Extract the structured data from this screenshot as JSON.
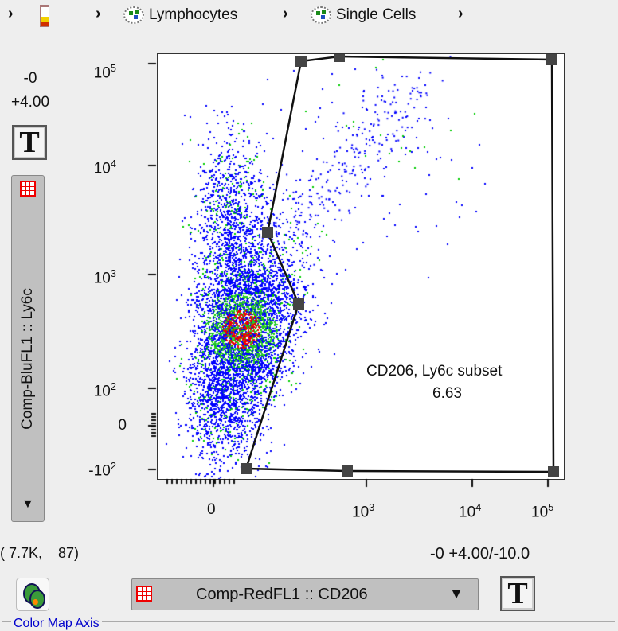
{
  "breadcrumb": {
    "items": [
      {
        "label": "",
        "icon": "tube-icon"
      },
      {
        "label": "Lymphocytes",
        "icon": "gate-icon"
      },
      {
        "label": "Single Cells",
        "icon": "gate-icon"
      }
    ]
  },
  "y_axis": {
    "min_label": "-0",
    "max_label": "+4.00",
    "param": "Comp-BluFL1 :: Ly6c",
    "ticks": [
      {
        "base": "10",
        "exp": "5"
      },
      {
        "base": "10",
        "exp": "4"
      },
      {
        "base": "10",
        "exp": "3"
      },
      {
        "base": "10",
        "exp": "2"
      },
      {
        "base": "0",
        "exp": ""
      },
      {
        "base": "-10",
        "exp": "2"
      }
    ]
  },
  "x_axis": {
    "param": "Comp-RedFL1 :: CD206",
    "range_label": "-0 +4.00/-10.0",
    "ticks": [
      {
        "base": "0",
        "exp": ""
      },
      {
        "base": "10",
        "exp": "3"
      },
      {
        "base": "10",
        "exp": "4"
      },
      {
        "base": "10",
        "exp": "5"
      }
    ]
  },
  "gate": {
    "name": "CD206, Ly6c subset",
    "value": "6.63"
  },
  "cursor_readout": "( 7.7K,    87)",
  "t_button": "T",
  "color_map_label": "Color Map Axis"
}
